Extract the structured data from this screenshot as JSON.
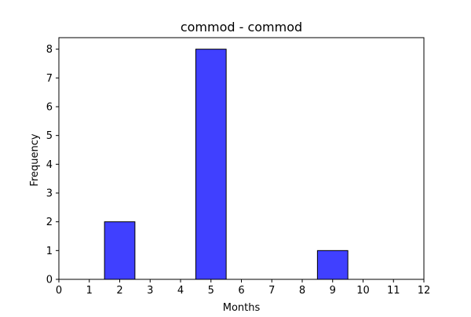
{
  "chart_data": {
    "type": "bar",
    "title": "commod - commod",
    "xlabel": "Months",
    "ylabel": "Frequency",
    "xlim": [
      0,
      12
    ],
    "ylim": [
      0,
      8.4
    ],
    "x_ticks": [
      0,
      1,
      2,
      3,
      4,
      5,
      6,
      7,
      8,
      9,
      10,
      11,
      12
    ],
    "y_ticks": [
      0,
      1,
      2,
      3,
      4,
      5,
      6,
      7,
      8
    ],
    "bars": [
      {
        "x": 2,
        "value": 2
      },
      {
        "x": 5,
        "value": 8
      },
      {
        "x": 9,
        "value": 1
      }
    ],
    "bar_color": "#4040ff",
    "edge_color": "#000000",
    "grid": false,
    "legend": "none"
  }
}
